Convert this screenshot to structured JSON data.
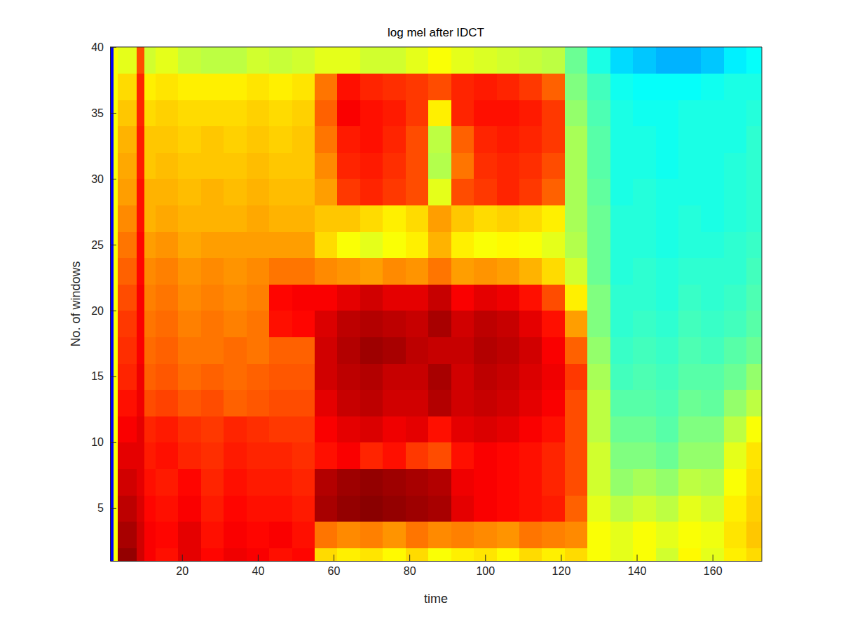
{
  "chart_data": {
    "type": "heatmap",
    "title": "log mel after IDCT",
    "x_label": "time",
    "y_label": "No. of windows",
    "xlim": [
      1,
      173
    ],
    "ylim": [
      1,
      40
    ],
    "xticks": [
      20,
      40,
      60,
      80,
      100,
      120,
      140,
      160
    ],
    "yticks": [
      5,
      10,
      15,
      20,
      25,
      30,
      35,
      40
    ],
    "clim": [
      0,
      100
    ],
    "x_edges": [
      1,
      2,
      3,
      8,
      10,
      13,
      19,
      25,
      31,
      37,
      43,
      49,
      55,
      61,
      67,
      73,
      79,
      85,
      91,
      97,
      103,
      109,
      115,
      121,
      127,
      133,
      139,
      145,
      151,
      157,
      163,
      169,
      173
    ],
    "y_edges": [
      1,
      2,
      4,
      6,
      8,
      10,
      12,
      14,
      16,
      18,
      20,
      22,
      24,
      26,
      28,
      30,
      32,
      34,
      36,
      38,
      40
    ],
    "values": [
      [
        12,
        62,
        98,
        92,
        88,
        86,
        90,
        87,
        89,
        88,
        86,
        87,
        66,
        64,
        65,
        63,
        66,
        62,
        64,
        65,
        63,
        66,
        64,
        66,
        62,
        60,
        62,
        58,
        63,
        60,
        64,
        66
      ],
      [
        12,
        62,
        96,
        92,
        88,
        87,
        90,
        86,
        88,
        87,
        88,
        86,
        76,
        74,
        75,
        73,
        76,
        74,
        75,
        74,
        73,
        76,
        75,
        74,
        62,
        60,
        62,
        60,
        62,
        61,
        65,
        68
      ],
      [
        12,
        62,
        94,
        91,
        87,
        86,
        88,
        85,
        87,
        86,
        86,
        85,
        96,
        98,
        99,
        98,
        97,
        96,
        90,
        88,
        87,
        86,
        85,
        78,
        60,
        56,
        58,
        56,
        60,
        58,
        64,
        67
      ],
      [
        12,
        62,
        92,
        90,
        86,
        85,
        87,
        84,
        86,
        85,
        85,
        84,
        95,
        97,
        98,
        97,
        96,
        95,
        89,
        88,
        87,
        86,
        84,
        80,
        58,
        52,
        54,
        52,
        56,
        55,
        62,
        66
      ],
      [
        12,
        62,
        90,
        90,
        85,
        86,
        84,
        83,
        85,
        84,
        84,
        83,
        86,
        88,
        84,
        86,
        82,
        80,
        86,
        88,
        87,
        86,
        84,
        80,
        58,
        50,
        50,
        48,
        52,
        52,
        60,
        65
      ],
      [
        12,
        62,
        88,
        90,
        84,
        85,
        83,
        82,
        84,
        83,
        82,
        82,
        88,
        90,
        91,
        89,
        90,
        86,
        90,
        91,
        90,
        88,
        86,
        80,
        56,
        48,
        48,
        46,
        50,
        50,
        56,
        62
      ],
      [
        12,
        62,
        86,
        89,
        80,
        81,
        79,
        80,
        78,
        79,
        80,
        80,
        90,
        93,
        94,
        92,
        92,
        95,
        92,
        93,
        92,
        90,
        88,
        80,
        56,
        46,
        46,
        45,
        48,
        47,
        52,
        56
      ],
      [
        12,
        62,
        84,
        89,
        78,
        79,
        77,
        78,
        77,
        78,
        79,
        79,
        92,
        94,
        95,
        93,
        93,
        96,
        92,
        94,
        93,
        91,
        89,
        82,
        54,
        44,
        45,
        44,
        46,
        46,
        48,
        52
      ],
      [
        12,
        62,
        83,
        88,
        77,
        78,
        76,
        76,
        77,
        76,
        78,
        78,
        92,
        95,
        97,
        96,
        94,
        93,
        93,
        95,
        94,
        92,
        88,
        78,
        52,
        43,
        44,
        43,
        45,
        44,
        46,
        48
      ],
      [
        12,
        62,
        82,
        88,
        76,
        77,
        75,
        76,
        75,
        76,
        86,
        87,
        91,
        94,
        95,
        94,
        93,
        96,
        92,
        94,
        93,
        90,
        86,
        72,
        50,
        42,
        43,
        42,
        44,
        43,
        44,
        46
      ],
      [
        12,
        62,
        80,
        88,
        75,
        76,
        74,
        75,
        74,
        75,
        87,
        88,
        88,
        90,
        92,
        90,
        90,
        93,
        88,
        90,
        89,
        86,
        80,
        64,
        50,
        42,
        42,
        41,
        43,
        42,
        43,
        45
      ],
      [
        12,
        62,
        78,
        87,
        74,
        75,
        73,
        74,
        73,
        74,
        76,
        76,
        74,
        73,
        72,
        74,
        73,
        76,
        72,
        73,
        72,
        70,
        66,
        58,
        48,
        41,
        42,
        41,
        42,
        42,
        42,
        44
      ],
      [
        12,
        62,
        76,
        87,
        72,
        73,
        71,
        72,
        72,
        72,
        72,
        72,
        66,
        62,
        60,
        62,
        64,
        70,
        64,
        62,
        63,
        62,
        60,
        55,
        48,
        41,
        41,
        40,
        41,
        41,
        42,
        43
      ],
      [
        12,
        62,
        74,
        86,
        70,
        71,
        70,
        70,
        70,
        71,
        70,
        70,
        68,
        68,
        66,
        64,
        66,
        72,
        68,
        66,
        67,
        66,
        64,
        54,
        48,
        41,
        41,
        40,
        41,
        40,
        41,
        42
      ],
      [
        12,
        62,
        72,
        86,
        70,
        70,
        69,
        70,
        69,
        70,
        69,
        69,
        72,
        82,
        84,
        82,
        80,
        60,
        80,
        82,
        84,
        82,
        78,
        54,
        47,
        40,
        41,
        40,
        40,
        40,
        41,
        42
      ],
      [
        12,
        62,
        71,
        85,
        68,
        69,
        68,
        68,
        68,
        69,
        68,
        68,
        74,
        84,
        85,
        83,
        80,
        55,
        76,
        83,
        84,
        83,
        80,
        54,
        46,
        40,
        40,
        39,
        40,
        40,
        41,
        42
      ],
      [
        12,
        62,
        70,
        85,
        68,
        68,
        67,
        68,
        67,
        68,
        67,
        68,
        76,
        85,
        86,
        84,
        80,
        56,
        78,
        84,
        85,
        84,
        82,
        54,
        46,
        40,
        40,
        39,
        40,
        40,
        40,
        42
      ],
      [
        12,
        62,
        68,
        84,
        66,
        67,
        66,
        66,
        66,
        67,
        66,
        67,
        78,
        88,
        86,
        85,
        82,
        64,
        84,
        86,
        86,
        85,
        82,
        52,
        45,
        40,
        39,
        39,
        40,
        40,
        40,
        41
      ],
      [
        12,
        62,
        66,
        84,
        64,
        65,
        64,
        64,
        64,
        65,
        64,
        65,
        76,
        86,
        84,
        83,
        82,
        80,
        84,
        85,
        84,
        82,
        78,
        50,
        44,
        39,
        38,
        38,
        38,
        39,
        40,
        40
      ],
      [
        12,
        62,
        60,
        80,
        58,
        60,
        57,
        56,
        56,
        58,
        57,
        58,
        60,
        60,
        58,
        58,
        60,
        62,
        60,
        59,
        58,
        57,
        56,
        48,
        40,
        34,
        32,
        30,
        30,
        32,
        36,
        38
      ]
    ]
  }
}
